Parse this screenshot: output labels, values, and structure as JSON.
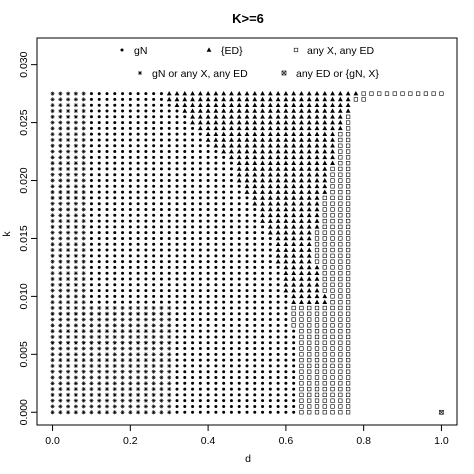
{
  "chart_data": {
    "type": "scatter",
    "title": "K>=6",
    "xlabel": "d",
    "ylabel": "k",
    "xlim": [
      -0.04,
      1.04
    ],
    "ylim": [
      -0.0011,
      0.0323
    ],
    "x_ticks": [
      0.0,
      0.2,
      0.4,
      0.6,
      0.8,
      1.0
    ],
    "x_tick_labels": [
      "0.0",
      "0.2",
      "0.4",
      "0.6",
      "0.8",
      "1.0"
    ],
    "y_ticks": [
      0.0,
      0.005,
      0.01,
      0.015,
      0.02,
      0.025,
      0.03
    ],
    "y_tick_labels": [
      "0.000",
      "0.005",
      "0.010",
      "0.015",
      "0.020",
      "0.025",
      "0.030"
    ],
    "grid": {
      "x_start": 0.0,
      "x_step": 0.02,
      "y_start": 0.0,
      "y_step": 0.0005,
      "n_x": 51,
      "n_y": 56
    },
    "legend_position": "top",
    "series": [
      {
        "name": "gN",
        "marker": "dot"
      },
      {
        "name": "{ED}",
        "marker": "triangle"
      },
      {
        "name": "any X, any ED",
        "marker": "square"
      },
      {
        "name": "gN or any X, any ED",
        "marker": "asterisk"
      },
      {
        "name": "any ED or {gN, X}",
        "marker": "boxed-x"
      }
    ],
    "regions": {
      "outer_boundary_d": [
        [
          0.0,
          0.76
        ],
        [
          0.0265,
          0.76
        ],
        [
          0.027,
          0.8
        ],
        [
          0.0235,
          0.82
        ],
        [
          0.0185,
          0.84
        ],
        [
          0.014,
          0.86
        ],
        [
          0.009,
          0.88
        ],
        [
          0.005,
          0.9
        ],
        [
          0.003,
          0.92
        ],
        [
          0.0015,
          0.96
        ],
        [
          0.0,
          1.0
        ]
      ],
      "asterisk_boundary_d": [
        [
          0.0,
          0.08
        ],
        [
          0.0275,
          0.08
        ],
        [
          0.026,
          0.1
        ],
        [
          0.024,
          0.12
        ],
        [
          0.022,
          0.14
        ],
        [
          0.0185,
          0.18
        ],
        [
          0.015,
          0.22
        ],
        [
          0.012,
          0.26
        ],
        [
          0.009,
          0.3
        ],
        [
          0.0,
          0.3
        ]
      ],
      "gn_boundary_d": [
        [
          0.0,
          0.62
        ],
        [
          0.007,
          0.62
        ],
        [
          0.0075,
          0.6
        ],
        [
          0.01,
          0.6
        ],
        [
          0.0125,
          0.58
        ],
        [
          0.015,
          0.56
        ],
        [
          0.0175,
          0.52
        ],
        [
          0.0195,
          0.48
        ],
        [
          0.0215,
          0.46
        ],
        [
          0.0225,
          0.42
        ],
        [
          0.024,
          0.38
        ],
        [
          0.0255,
          0.34
        ],
        [
          0.0265,
          0.3
        ],
        [
          0.0275,
          0.28
        ]
      ],
      "triangle_boundary_d": [
        [
          0.0,
          0.78
        ],
        [
          0.0155,
          0.66
        ],
        [
          0.016,
          0.68
        ],
        [
          0.019,
          0.7
        ],
        [
          0.0215,
          0.72
        ],
        [
          0.0245,
          0.74
        ],
        [
          0.026,
          0.76
        ],
        [
          0.0275,
          0.78
        ]
      ],
      "boxed_x_points": [
        [
          1.0,
          0.0
        ]
      ]
    }
  }
}
